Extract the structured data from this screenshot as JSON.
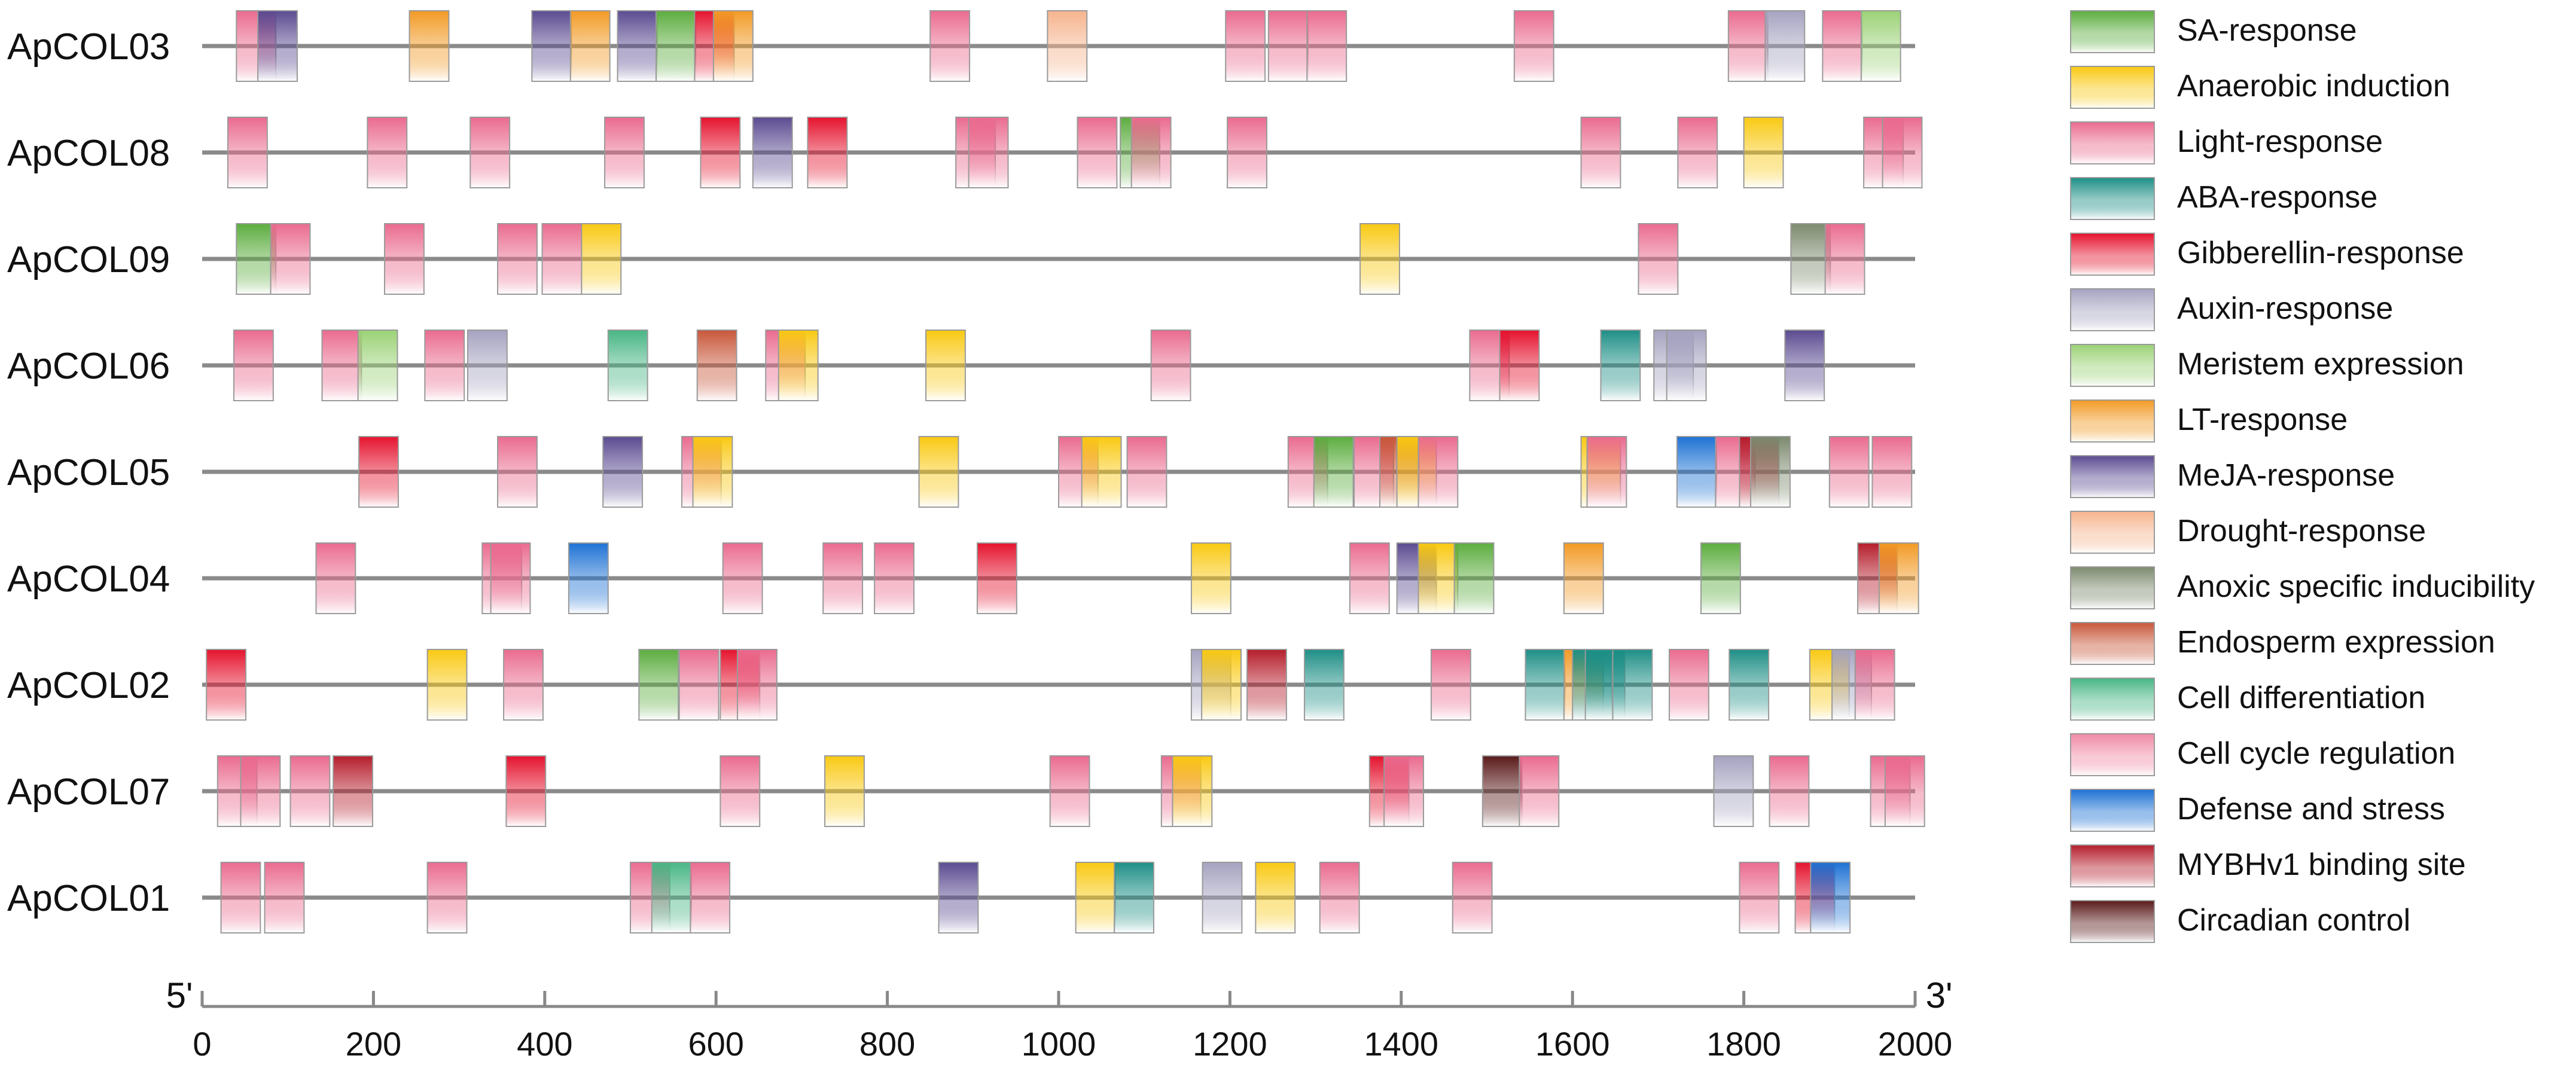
{
  "chart_data": {
    "type": "cis-element-map",
    "axis": {
      "min": 0,
      "max": 2000,
      "ticks": [
        0,
        200,
        400,
        600,
        800,
        1000,
        1200,
        1400,
        1600,
        1800,
        2000
      ],
      "tick_labels": [
        "0",
        "200",
        "400",
        "600",
        "800",
        "1000",
        "1200",
        "1400",
        "1600",
        "1800",
        "2000"
      ],
      "start_label": "5'",
      "end_label": "3'"
    },
    "element_width": 46,
    "legend": [
      {
        "key": "sa",
        "label": "SA-response",
        "color": "#5cad3f"
      },
      {
        "key": "anaerobic",
        "label": "Anaerobic induction",
        "color": "#f9c913"
      },
      {
        "key": "light",
        "label": "Light-response",
        "color": "#ea6b8f"
      },
      {
        "key": "aba",
        "label": "ABA-response",
        "color": "#1e8f86"
      },
      {
        "key": "gibberellin",
        "label": "Gibberellin-response",
        "color": "#e5132e"
      },
      {
        "key": "auxin",
        "label": "Auxin-response",
        "color": "#a5a3c0"
      },
      {
        "key": "meristem",
        "label": "Meristem expression",
        "color": "#9bd276"
      },
      {
        "key": "lt",
        "label": "LT-response",
        "color": "#f29a25"
      },
      {
        "key": "meja",
        "label": "MeJA-response",
        "color": "#5b4b91"
      },
      {
        "key": "drought",
        "label": "Drought-response",
        "color": "#f6b48e"
      },
      {
        "key": "anoxic",
        "label": "Anoxic specific inducibility",
        "color": "#7c8a6e"
      },
      {
        "key": "endosperm",
        "label": "Endosperm expression",
        "color": "#c8573a"
      },
      {
        "key": "celldiff",
        "label": "Cell differentiation",
        "color": "#48b685"
      },
      {
        "key": "cellcycle",
        "label": "Cell cycle regulation",
        "color": "#f08aa6"
      },
      {
        "key": "defense",
        "label": "Defense and stress",
        "color": "#1e72d4"
      },
      {
        "key": "mybhv1",
        "label": "MYBHv1 binding site",
        "color": "#b51e2c"
      },
      {
        "key": "circadian",
        "label": "Circadian control",
        "color": "#5a1a1a"
      }
    ],
    "genes": [
      {
        "name": "ApCOL03",
        "elements": [
          [
            "light",
            40
          ],
          [
            "meja",
            65
          ],
          [
            "lt",
            242
          ],
          [
            "meja",
            385
          ],
          [
            "lt",
            430
          ],
          [
            "meja",
            485
          ],
          [
            "sa",
            530
          ],
          [
            "gibberellin",
            575
          ],
          [
            "lt",
            597
          ],
          [
            "light",
            850
          ],
          [
            "drought",
            987
          ],
          [
            "light",
            1195
          ],
          [
            "light",
            1245
          ],
          [
            "light",
            1290
          ],
          [
            "light",
            1532
          ],
          [
            "light",
            1782
          ],
          [
            "auxin",
            1825
          ],
          [
            "light",
            1892
          ],
          [
            "meristem",
            1937
          ]
        ]
      },
      {
        "name": "ApCOL08",
        "elements": [
          [
            "light",
            30
          ],
          [
            "light",
            193
          ],
          [
            "light",
            313
          ],
          [
            "light",
            470
          ],
          [
            "gibberellin",
            582
          ],
          [
            "meja",
            643
          ],
          [
            "gibberellin",
            707
          ],
          [
            "light",
            880
          ],
          [
            "light",
            895
          ],
          [
            "light",
            1022
          ],
          [
            "sa",
            1072
          ],
          [
            "light",
            1085
          ],
          [
            "light",
            1197
          ],
          [
            "light",
            1610
          ],
          [
            "light",
            1723
          ],
          [
            "anaerobic",
            1800
          ],
          [
            "light",
            1940
          ],
          [
            "light",
            1962
          ]
        ]
      },
      {
        "name": "ApCOL09",
        "elements": [
          [
            "sa",
            40
          ],
          [
            "light",
            80
          ],
          [
            "light",
            213
          ],
          [
            "light",
            345
          ],
          [
            "light",
            397
          ],
          [
            "anaerobic",
            443
          ],
          [
            "anaerobic",
            1352
          ],
          [
            "light",
            1677
          ],
          [
            "anoxic",
            1855
          ],
          [
            "light",
            1895
          ]
        ]
      },
      {
        "name": "ApCOL06",
        "elements": [
          [
            "light",
            37
          ],
          [
            "light",
            140
          ],
          [
            "meristem",
            182
          ],
          [
            "light",
            260
          ],
          [
            "auxin",
            310
          ],
          [
            "celldiff",
            474
          ],
          [
            "endosperm",
            578
          ],
          [
            "light",
            658
          ],
          [
            "anaerobic",
            673
          ],
          [
            "anaerobic",
            845
          ],
          [
            "light",
            1108
          ],
          [
            "light",
            1480
          ],
          [
            "gibberellin",
            1515
          ],
          [
            "aba",
            1633
          ],
          [
            "auxin",
            1695
          ],
          [
            "auxin",
            1710
          ],
          [
            "meja",
            1848
          ]
        ]
      },
      {
        "name": "ApCOL05",
        "elements": [
          [
            "gibberellin",
            183
          ],
          [
            "light",
            345
          ],
          [
            "meja",
            468
          ],
          [
            "light",
            560
          ],
          [
            "anaerobic",
            573
          ],
          [
            "anaerobic",
            837
          ],
          [
            "light",
            1000
          ],
          [
            "anaerobic",
            1027
          ],
          [
            "light",
            1080
          ],
          [
            "light",
            1268
          ],
          [
            "sa",
            1298
          ],
          [
            "light",
            1345
          ],
          [
            "endosperm",
            1375
          ],
          [
            "anaerobic",
            1395
          ],
          [
            "light",
            1420
          ],
          [
            "anaerobic",
            1610
          ],
          [
            "light",
            1617
          ],
          [
            "defense",
            1722
          ],
          [
            "light",
            1767
          ],
          [
            "mybhv1",
            1795
          ],
          [
            "anoxic",
            1808
          ],
          [
            "light",
            1900
          ],
          [
            "light",
            1950
          ]
        ]
      },
      {
        "name": "ApCOL04",
        "elements": [
          [
            "light",
            133
          ],
          [
            "light",
            327
          ],
          [
            "light",
            337
          ],
          [
            "defense",
            428
          ],
          [
            "light",
            608
          ],
          [
            "light",
            725
          ],
          [
            "light",
            785
          ],
          [
            "gibberellin",
            905
          ],
          [
            "anaerobic",
            1155
          ],
          [
            "light",
            1340
          ],
          [
            "meja",
            1395
          ],
          [
            "anaerobic",
            1420
          ],
          [
            "sa",
            1462
          ],
          [
            "lt",
            1590
          ],
          [
            "sa",
            1750
          ],
          [
            "mybhv1",
            1933
          ],
          [
            "lt",
            1958
          ]
        ]
      },
      {
        "name": "ApCOL02",
        "elements": [
          [
            "gibberellin",
            5
          ],
          [
            "anaerobic",
            263
          ],
          [
            "light",
            352
          ],
          [
            "sa",
            510
          ],
          [
            "light",
            557
          ],
          [
            "gibberellin",
            605
          ],
          [
            "light",
            625
          ],
          [
            "auxin",
            1155
          ],
          [
            "anaerobic",
            1167
          ],
          [
            "mybhv1",
            1220
          ],
          [
            "aba",
            1287
          ],
          [
            "light",
            1435
          ],
          [
            "aba",
            1545
          ],
          [
            "lt",
            1590
          ],
          [
            "aba",
            1600
          ],
          [
            "aba",
            1615
          ],
          [
            "aba",
            1647
          ],
          [
            "light",
            1713
          ],
          [
            "aba",
            1783
          ],
          [
            "anaerobic",
            1877
          ],
          [
            "auxin",
            1903
          ],
          [
            "light",
            1930
          ]
        ]
      },
      {
        "name": "ApCOL07",
        "elements": [
          [
            "light",
            18
          ],
          [
            "light",
            45
          ],
          [
            "light",
            103
          ],
          [
            "mybhv1",
            153
          ],
          [
            "gibberellin",
            355
          ],
          [
            "light",
            605
          ],
          [
            "anaerobic",
            727
          ],
          [
            "light",
            990
          ],
          [
            "light",
            1120
          ],
          [
            "anaerobic",
            1133
          ],
          [
            "gibberellin",
            1363
          ],
          [
            "light",
            1380
          ],
          [
            "circadian",
            1495
          ],
          [
            "light",
            1538
          ],
          [
            "auxin",
            1765
          ],
          [
            "light",
            1830
          ],
          [
            "light",
            1948
          ],
          [
            "light",
            1965
          ]
        ]
      },
      {
        "name": "ApCOL01",
        "elements": [
          [
            "light",
            22
          ],
          [
            "light",
            73
          ],
          [
            "light",
            263
          ],
          [
            "light",
            500
          ],
          [
            "celldiff",
            525
          ],
          [
            "light",
            570
          ],
          [
            "meja",
            860
          ],
          [
            "anaerobic",
            1020
          ],
          [
            "aba",
            1065
          ],
          [
            "auxin",
            1168
          ],
          [
            "anaerobic",
            1230
          ],
          [
            "light",
            1305
          ],
          [
            "light",
            1460
          ],
          [
            "light",
            1795
          ],
          [
            "gibberellin",
            1860
          ],
          [
            "defense",
            1878
          ]
        ]
      }
    ]
  }
}
